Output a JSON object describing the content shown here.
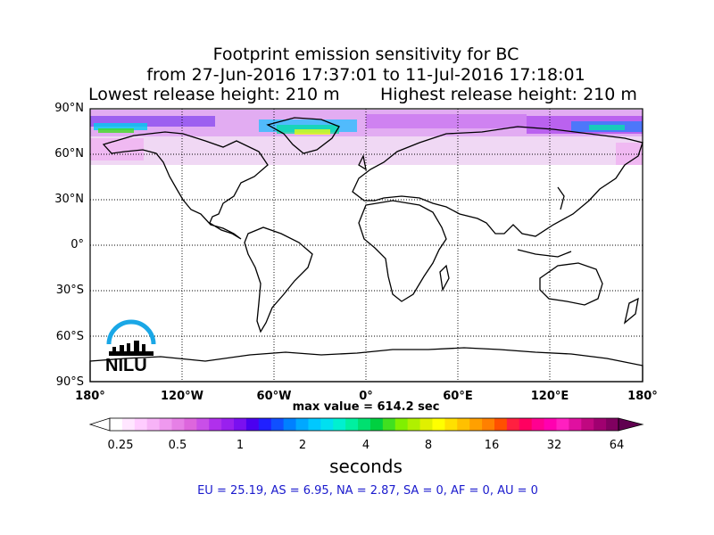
{
  "title": {
    "line1": "Footprint emission sensitivity for BC",
    "line2": "from 27-Jun-2016 17:37:01 to 11-Jul-2016 17:18:01",
    "line3_left": "Lowest release height: 210 m",
    "line3_right": "Highest release height: 210 m"
  },
  "map": {
    "lat_labels": [
      "90°N",
      "60°N",
      "30°N",
      "0°",
      "30°S",
      "60°S",
      "90°S"
    ],
    "lon_labels": [
      "180°",
      "120°W",
      "60°W",
      "0°",
      "60°E",
      "120°E",
      "180°"
    ],
    "grid": true,
    "grid_style": "dotted",
    "projection": "equirectangular"
  },
  "max_value": "max value = 614.2 sec",
  "colorbar": {
    "ticks": [
      "0.25",
      "0.5",
      "1",
      "2",
      "4",
      "8",
      "16",
      "32",
      "64"
    ],
    "label": "seconds",
    "colors": [
      "#ffffff",
      "#ffe6ff",
      "#ffccff",
      "#f7b3f7",
      "#ef99ef",
      "#e680e6",
      "#dd66dd",
      "#c94fe8",
      "#b030ec",
      "#9920ee",
      "#7a10f0",
      "#4b00f0",
      "#2020ff",
      "#1050ff",
      "#0080ff",
      "#00a8ff",
      "#00c8ff",
      "#00e0f0",
      "#00f0d0",
      "#00f0a0",
      "#00e070",
      "#00d040",
      "#40e020",
      "#80f000",
      "#b0f000",
      "#e0f000",
      "#ffff00",
      "#ffe000",
      "#ffc000",
      "#ffa000",
      "#ff8000",
      "#ff5000",
      "#ff2040",
      "#ff0060",
      "#ff0090",
      "#ff00b0",
      "#ff20c0",
      "#e010a0",
      "#c00880",
      "#a00070",
      "#800060"
    ]
  },
  "logo": {
    "text": "NILU",
    "color": "#1aa7e6"
  },
  "regions": "EU = 25.19,  AS = 6.95,  NA = 2.87,  SA = 0,  AF = 0,  AU = 0"
}
